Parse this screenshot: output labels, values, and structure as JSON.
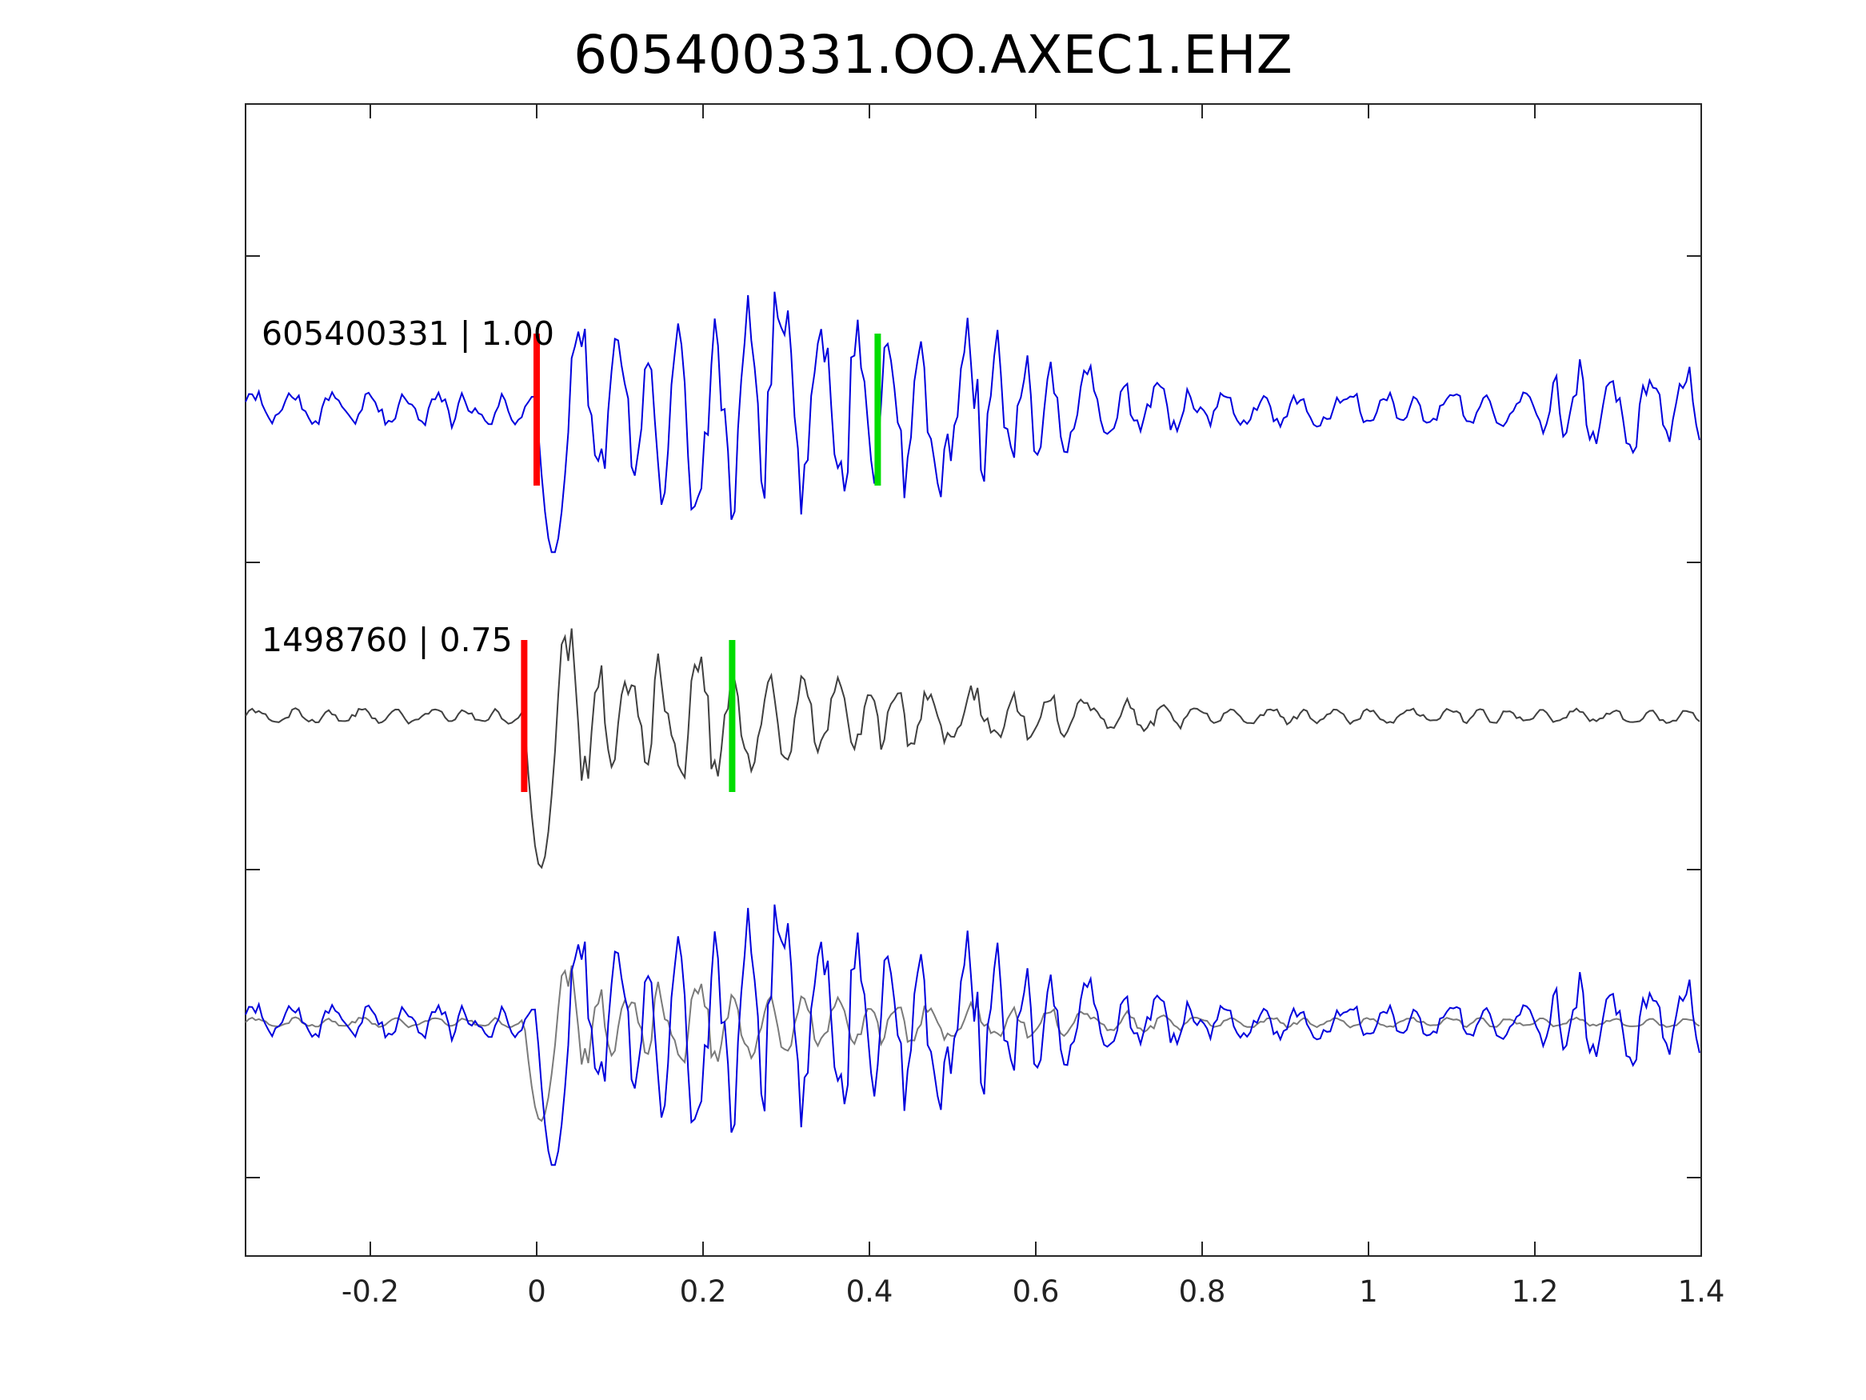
{
  "chart_data": {
    "type": "line",
    "title": "605400331.OO.AXEC1.EHZ",
    "xlabel": "",
    "ylabel": "",
    "xlim": [
      -0.35,
      1.4
    ],
    "x_ticks": [
      "-0.2",
      "0",
      "0.2",
      "0.4",
      "0.6",
      "0.8",
      "1",
      "1.2",
      "1.4"
    ],
    "x_tick_values": [
      -0.2,
      0,
      0.2,
      0.4,
      0.6,
      0.8,
      1.0,
      1.2,
      1.4
    ],
    "y_ticks_labeled": false,
    "grid": false,
    "colors": {
      "primary": "#0000dd",
      "secondary": "#404040",
      "overlay_secondary": "#7a7a7a",
      "p_pick": "#ff0000",
      "s_pick": "#00dd00"
    },
    "traces": [
      {
        "name": "605400331 | 1.00",
        "color": "#0000dd",
        "p_pick": 0.0,
        "s_pick": 0.41,
        "envelope_x": [
          -0.35,
          0.0,
          0.02,
          0.05,
          0.1,
          0.2,
          0.3,
          0.4,
          0.5,
          0.6,
          0.7,
          0.8,
          1.0,
          1.2,
          1.25,
          1.4
        ],
        "envelope_amplitude": [
          0.12,
          0.12,
          1.0,
          0.7,
          0.55,
          0.9,
          0.8,
          0.6,
          0.7,
          0.4,
          0.25,
          0.15,
          0.12,
          0.12,
          0.35,
          0.3
        ]
      },
      {
        "name": "1498760 | 0.75",
        "color": "#404040",
        "p_pick": -0.015,
        "s_pick": 0.235,
        "envelope_x": [
          -0.35,
          -0.01,
          0.02,
          0.05,
          0.1,
          0.2,
          0.3,
          0.4,
          0.5,
          0.6,
          0.7,
          0.8,
          1.0,
          1.4
        ],
        "envelope_amplitude": [
          0.05,
          0.05,
          1.0,
          0.45,
          0.35,
          0.45,
          0.3,
          0.22,
          0.2,
          0.18,
          0.12,
          0.07,
          0.05,
          0.05
        ]
      }
    ]
  }
}
